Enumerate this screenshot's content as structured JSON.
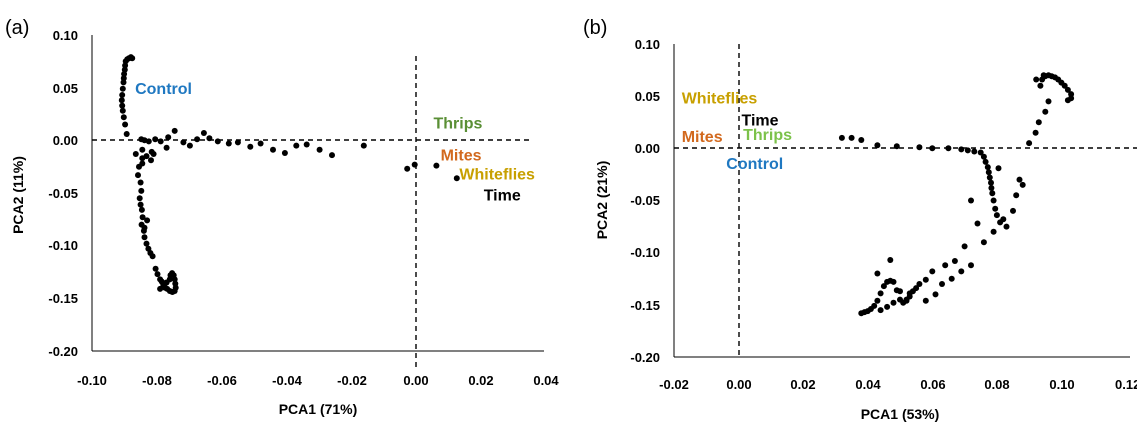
{
  "chart_data": [
    {
      "type": "scatter",
      "panel_label": "(a)",
      "xlabel": "PCA1 (71%)",
      "ylabel": "PCA2 (11%)",
      "xlim": [
        -0.1,
        0.04
      ],
      "ylim": [
        -0.2,
        0.1
      ],
      "xticks": [
        "-0.10",
        "-0.08",
        "-0.06",
        "-0.04",
        "-0.02",
        "0.00",
        "0.02",
        "0.04"
      ],
      "yticks": [
        "0.10",
        "0.05",
        "0.00",
        "-0.05",
        "-0.10",
        "-0.15",
        "-0.20"
      ],
      "reference_lines": {
        "x": 0.0,
        "y": 0.0,
        "style": "dashed"
      },
      "annotations": [
        {
          "text": "Control",
          "x": -0.0867,
          "y": 0.044,
          "color": "#1f78c1"
        },
        {
          "text": "Thrips",
          "x": 0.0053,
          "y": 0.011,
          "color": "#5a8f35"
        },
        {
          "text": "Mites",
          "x": 0.0075,
          "y": -0.019,
          "color": "#d2691e"
        },
        {
          "text": "Whiteflies",
          "x": 0.0133,
          "y": -0.037,
          "color": "#c8a000"
        },
        {
          "text": "Time",
          "x": 0.0208,
          "y": -0.057,
          "color": "#000000"
        }
      ],
      "points": [
        [
          -0.0896,
          0.075
        ],
        [
          -0.0891,
          0.077
        ],
        [
          -0.0886,
          0.078
        ],
        [
          -0.088,
          0.079
        ],
        [
          -0.0876,
          0.078
        ],
        [
          -0.0898,
          0.071
        ],
        [
          -0.0899,
          0.067
        ],
        [
          -0.0901,
          0.063
        ],
        [
          -0.0902,
          0.059
        ],
        [
          -0.0903,
          0.055
        ],
        [
          -0.0905,
          0.049
        ],
        [
          -0.0907,
          0.043
        ],
        [
          -0.0908,
          0.038
        ],
        [
          -0.0907,
          0.033
        ],
        [
          -0.0905,
          0.028
        ],
        [
          -0.0902,
          0.022
        ],
        [
          -0.0898,
          0.015
        ],
        [
          -0.0893,
          0.006
        ],
        [
          -0.0848,
          0.001
        ],
        [
          -0.0838,
          0.0
        ],
        [
          -0.0825,
          -0.001
        ],
        [
          -0.0805,
          0.001
        ],
        [
          -0.0788,
          -0.001
        ],
        [
          -0.0765,
          0.003
        ],
        [
          -0.0745,
          0.009
        ],
        [
          -0.0718,
          -0.002
        ],
        [
          -0.0698,
          -0.005
        ],
        [
          -0.0676,
          0.001
        ],
        [
          -0.0655,
          0.007
        ],
        [
          -0.0638,
          0.002
        ],
        [
          -0.0612,
          -0.001
        ],
        [
          -0.0578,
          -0.003
        ],
        [
          -0.055,
          -0.002
        ],
        [
          -0.0512,
          -0.006
        ],
        [
          -0.048,
          -0.003
        ],
        [
          -0.0442,
          -0.009
        ],
        [
          -0.0405,
          -0.012
        ],
        [
          -0.037,
          -0.005
        ],
        [
          -0.0338,
          -0.004
        ],
        [
          -0.0298,
          -0.009
        ],
        [
          -0.026,
          -0.014
        ],
        [
          -0.0162,
          -0.005
        ],
        [
          -0.0028,
          -0.027
        ],
        [
          -0.0005,
          -0.023
        ],
        [
          0.0062,
          -0.024
        ],
        [
          0.0125,
          -0.036
        ],
        [
          -0.0865,
          -0.013
        ],
        [
          -0.0845,
          -0.009
        ],
        [
          -0.0832,
          -0.015
        ],
        [
          -0.0816,
          -0.011
        ],
        [
          -0.0818,
          -0.019
        ],
        [
          -0.0845,
          -0.022
        ],
        [
          -0.0855,
          -0.025
        ],
        [
          -0.0858,
          -0.033
        ],
        [
          -0.085,
          -0.04
        ],
        [
          -0.0848,
          -0.048
        ],
        [
          -0.0853,
          -0.055
        ],
        [
          -0.085,
          -0.061
        ],
        [
          -0.0846,
          -0.066
        ],
        [
          -0.0844,
          -0.073
        ],
        [
          -0.0847,
          -0.08
        ],
        [
          -0.084,
          -0.086
        ],
        [
          -0.0838,
          -0.092
        ],
        [
          -0.0832,
          -0.098
        ],
        [
          -0.0826,
          -0.103
        ],
        [
          -0.082,
          -0.107
        ],
        [
          -0.0813,
          -0.11
        ],
        [
          -0.0804,
          -0.122
        ],
        [
          -0.0798,
          -0.127
        ],
        [
          -0.079,
          -0.132
        ],
        [
          -0.0785,
          -0.134
        ],
        [
          -0.078,
          -0.137
        ],
        [
          -0.0775,
          -0.14
        ],
        [
          -0.0768,
          -0.141
        ],
        [
          -0.076,
          -0.143
        ],
        [
          -0.0752,
          -0.144
        ],
        [
          -0.0745,
          -0.143
        ],
        [
          -0.0742,
          -0.14
        ],
        [
          -0.0743,
          -0.136
        ],
        [
          -0.0745,
          -0.132
        ],
        [
          -0.0748,
          -0.128
        ],
        [
          -0.0753,
          -0.126
        ],
        [
          -0.0758,
          -0.128
        ],
        [
          -0.076,
          -0.132
        ],
        [
          -0.077,
          -0.135
        ],
        [
          -0.079,
          -0.141
        ],
        [
          -0.0838,
          -0.083
        ],
        [
          -0.083,
          -0.076
        ],
        [
          -0.081,
          -0.013
        ],
        [
          -0.0845,
          -0.017
        ],
        [
          -0.077,
          -0.007
        ]
      ]
    },
    {
      "type": "scatter",
      "panel_label": "(b)",
      "xlabel": "PCA1 (53%)",
      "ylabel": "PCA2 (21%)",
      "xlim": [
        -0.02,
        0.12
      ],
      "ylim": [
        -0.2,
        0.1
      ],
      "xticks": [
        "-0.02",
        "0.00",
        "0.02",
        "0.04",
        "0.06",
        "0.08",
        "0.10",
        "0.12"
      ],
      "yticks": [
        "0.10",
        "0.05",
        "0.00",
        "-0.05",
        "-0.10",
        "-0.15",
        "-0.20"
      ],
      "reference_lines": {
        "x": 0.0,
        "y": 0.0,
        "style": "dashed"
      },
      "annotations": [
        {
          "text": "Whiteflies",
          "x": -0.0176,
          "y": 0.043,
          "color": "#c8a000"
        },
        {
          "text": "Time",
          "x": 0.0009,
          "y": 0.022,
          "color": "#000000"
        },
        {
          "text": "Mites",
          "x": -0.0176,
          "y": 0.006,
          "color": "#d2691e"
        },
        {
          "text": "Thrips",
          "x": 0.0014,
          "y": 0.008,
          "color": "#7cc24a"
        },
        {
          "text": "Control",
          "x": -0.0038,
          "y": -0.02,
          "color": "#1f78c1"
        }
      ],
      "points": [
        [
          0.032,
          0.01
        ],
        [
          0.035,
          0.01
        ],
        [
          0.038,
          0.008
        ],
        [
          0.043,
          0.003
        ],
        [
          0.049,
          0.002
        ],
        [
          0.056,
          0.001
        ],
        [
          0.06,
          0.0
        ],
        [
          0.065,
          0.0
        ],
        [
          0.069,
          -0.001
        ],
        [
          0.071,
          -0.002
        ],
        [
          0.073,
          -0.003
        ],
        [
          0.075,
          -0.004
        ],
        [
          0.076,
          -0.008
        ],
        [
          0.0765,
          -0.013
        ],
        [
          0.0772,
          -0.018
        ],
        [
          0.0775,
          -0.023
        ],
        [
          0.0778,
          -0.028
        ],
        [
          0.0782,
          -0.033
        ],
        [
          0.0783,
          -0.038
        ],
        [
          0.0786,
          -0.043
        ],
        [
          0.079,
          -0.05
        ],
        [
          0.0795,
          -0.058
        ],
        [
          0.08,
          -0.064
        ],
        [
          0.081,
          -0.071
        ],
        [
          0.083,
          -0.075
        ],
        [
          0.085,
          -0.06
        ],
        [
          0.086,
          -0.045
        ],
        [
          0.087,
          -0.03
        ],
        [
          0.088,
          -0.035
        ],
        [
          0.0805,
          -0.019
        ],
        [
          0.09,
          0.005
        ],
        [
          0.092,
          0.015
        ],
        [
          0.093,
          0.025
        ],
        [
          0.095,
          0.035
        ],
        [
          0.096,
          0.045
        ],
        [
          0.0935,
          0.06
        ],
        [
          0.094,
          0.066
        ],
        [
          0.095,
          0.069
        ],
        [
          0.096,
          0.07
        ],
        [
          0.097,
          0.069
        ],
        [
          0.098,
          0.068
        ],
        [
          0.099,
          0.066
        ],
        [
          0.1,
          0.063
        ],
        [
          0.101,
          0.06
        ],
        [
          0.102,
          0.056
        ],
        [
          0.103,
          0.052
        ],
        [
          0.103,
          0.048
        ],
        [
          0.102,
          0.046
        ],
        [
          0.0922,
          0.066
        ],
        [
          0.0945,
          0.07
        ],
        [
          0.072,
          -0.05
        ],
        [
          0.074,
          -0.072
        ],
        [
          0.07,
          -0.094
        ],
        [
          0.067,
          -0.108
        ],
        [
          0.064,
          -0.112
        ],
        [
          0.06,
          -0.118
        ],
        [
          0.058,
          -0.126
        ],
        [
          0.056,
          -0.13
        ],
        [
          0.055,
          -0.134
        ],
        [
          0.054,
          -0.137
        ],
        [
          0.053,
          -0.142
        ],
        [
          0.052,
          -0.145
        ],
        [
          0.051,
          -0.148
        ],
        [
          0.05,
          -0.145
        ],
        [
          0.049,
          -0.136
        ],
        [
          0.048,
          -0.128
        ],
        [
          0.047,
          -0.127
        ],
        [
          0.046,
          -0.128
        ],
        [
          0.045,
          -0.132
        ],
        [
          0.044,
          -0.139
        ],
        [
          0.043,
          -0.146
        ],
        [
          0.042,
          -0.151
        ],
        [
          0.041,
          -0.154
        ],
        [
          0.04,
          -0.156
        ],
        [
          0.039,
          -0.157
        ],
        [
          0.038,
          -0.158
        ],
        [
          0.044,
          -0.155
        ],
        [
          0.046,
          -0.152
        ],
        [
          0.048,
          -0.148
        ],
        [
          0.052,
          -0.146
        ],
        [
          0.047,
          -0.107
        ],
        [
          0.043,
          -0.12
        ],
        [
          0.05,
          -0.137
        ],
        [
          0.053,
          -0.139
        ],
        [
          0.058,
          -0.146
        ],
        [
          0.061,
          -0.14
        ],
        [
          0.063,
          -0.13
        ],
        [
          0.066,
          -0.125
        ],
        [
          0.069,
          -0.118
        ],
        [
          0.072,
          -0.112
        ],
        [
          0.076,
          -0.09
        ],
        [
          0.079,
          -0.08
        ],
        [
          0.082,
          -0.068
        ]
      ]
    }
  ]
}
